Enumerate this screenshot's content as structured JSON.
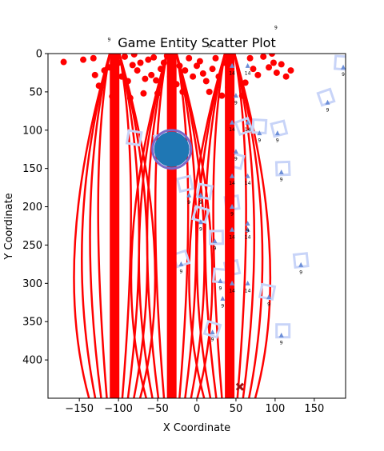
{
  "chart_data": {
    "type": "scatter",
    "title": "Game Entity Scatter Plot",
    "xlabel": "X Coordinate",
    "ylabel": "Y Coordinate",
    "xlim": [
      -190,
      190
    ],
    "ylim": [
      450,
      0
    ],
    "y_inverted": true,
    "grid": false,
    "legend": "none",
    "xticks": [
      -150,
      -100,
      -50,
      0,
      50,
      100,
      150
    ],
    "yticks": [
      0,
      50,
      100,
      150,
      200,
      250,
      300,
      350,
      400
    ],
    "colors": {
      "red": "#ff0000",
      "blue_marker": "#6d8fd8",
      "square_outline": "#c8d4f8",
      "player_fill": "#1f77b4",
      "player_ring": "#7b68c8",
      "cross": "#a01010"
    },
    "vertical_bars": [
      {
        "x": -105,
        "y_from": 0,
        "y_to": 450
      },
      {
        "x": -32,
        "y_from": 0,
        "y_to": 450
      },
      {
        "x": 42,
        "y_from": 0,
        "y_to": 450
      }
    ],
    "player": {
      "x": -32,
      "y": 125,
      "radius": 24
    },
    "cross_marker": {
      "x": 55,
      "y": 435
    },
    "red_points": [
      [
        -170,
        11
      ],
      [
        -145,
        8
      ],
      [
        -132,
        6
      ],
      [
        -130,
        28
      ],
      [
        -125,
        42
      ],
      [
        -118,
        22
      ],
      [
        -112,
        18
      ],
      [
        -106,
        4
      ],
      [
        -100,
        12
      ],
      [
        -96,
        30
      ],
      [
        -92,
        4
      ],
      [
        -88,
        36
      ],
      [
        -85,
        58
      ],
      [
        -82,
        15
      ],
      [
        -80,
        1
      ],
      [
        -76,
        22
      ],
      [
        -72,
        12
      ],
      [
        -68,
        52
      ],
      [
        -62,
        8
      ],
      [
        -58,
        28
      ],
      [
        -55,
        5
      ],
      [
        -52,
        35
      ],
      [
        -50,
        52
      ],
      [
        -46,
        20
      ],
      [
        -42,
        12
      ],
      [
        -38,
        3
      ],
      [
        -34,
        30
      ],
      [
        -30,
        6
      ],
      [
        -26,
        40
      ],
      [
        -22,
        16
      ],
      [
        -18,
        50
      ],
      [
        -15,
        22
      ],
      [
        -10,
        6
      ],
      [
        -5,
        30
      ],
      [
        0,
        16
      ],
      [
        4,
        10
      ],
      [
        8,
        26
      ],
      [
        12,
        36
      ],
      [
        16,
        50
      ],
      [
        20,
        20
      ],
      [
        24,
        6
      ],
      [
        28,
        30
      ],
      [
        32,
        55
      ],
      [
        36,
        12
      ],
      [
        40,
        44
      ],
      [
        58,
        55
      ],
      [
        62,
        38
      ],
      [
        68,
        6
      ],
      [
        72,
        20
      ],
      [
        78,
        28
      ],
      [
        85,
        4
      ],
      [
        92,
        18
      ],
      [
        96,
        0
      ],
      [
        98,
        12
      ],
      [
        102,
        25
      ],
      [
        108,
        14
      ],
      [
        114,
        30
      ],
      [
        120,
        22
      ],
      [
        -108,
        56
      ],
      [
        -66,
        33
      ]
    ],
    "blue_markers": [
      {
        "x": 45,
        "y": 16,
        "label": "14"
      },
      {
        "x": 65,
        "y": 16,
        "label": "14"
      },
      {
        "x": 50,
        "y": 55,
        "label": "9"
      },
      {
        "x": 45,
        "y": 90,
        "label": "14"
      },
      {
        "x": 65,
        "y": 90,
        "label": "14"
      },
      {
        "x": 80,
        "y": 104,
        "label": "9"
      },
      {
        "x": 103,
        "y": 104,
        "label": "9"
      },
      {
        "x": 50,
        "y": 128,
        "label": "9"
      },
      {
        "x": 45,
        "y": 160,
        "label": "14"
      },
      {
        "x": 65,
        "y": 160,
        "label": "14"
      },
      {
        "x": 108,
        "y": 155,
        "label": "9"
      },
      {
        "x": 167,
        "y": 64,
        "label": "9"
      },
      {
        "x": -10,
        "y": 185,
        "label": "9"
      },
      {
        "x": 5,
        "y": 185,
        "label": "9"
      },
      {
        "x": 45,
        "y": 200,
        "label": "9"
      },
      {
        "x": 45,
        "y": 230,
        "label": "14"
      },
      {
        "x": 65,
        "y": 230,
        "label": "14"
      },
      {
        "x": 5,
        "y": 220,
        "label": "9"
      },
      {
        "x": 65,
        "y": 222,
        "label": "9"
      },
      {
        "x": 23,
        "y": 245,
        "label": "9"
      },
      {
        "x": -20,
        "y": 275,
        "label": "9"
      },
      {
        "x": 30,
        "y": 297,
        "label": "9"
      },
      {
        "x": 45,
        "y": 300,
        "label": "14"
      },
      {
        "x": 65,
        "y": 300,
        "label": "14"
      },
      {
        "x": 33,
        "y": 320,
        "label": "9"
      },
      {
        "x": 92,
        "y": 318,
        "label": "9"
      },
      {
        "x": 133,
        "y": 276,
        "label": "9"
      },
      {
        "x": 20,
        "y": 364,
        "label": "9"
      },
      {
        "x": 108,
        "y": 368,
        "label": "9"
      },
      {
        "x": 187,
        "y": 18,
        "label": "9"
      }
    ],
    "outlined_squares": [
      {
        "x": 60,
        "y": 95
      },
      {
        "x": 80,
        "y": 95
      },
      {
        "x": 105,
        "y": 98
      },
      {
        "x": -80,
        "y": 110
      },
      {
        "x": -45,
        "y": 115
      },
      {
        "x": 50,
        "y": 140
      },
      {
        "x": 110,
        "y": 150
      },
      {
        "x": 165,
        "y": 57
      },
      {
        "x": 185,
        "y": 12
      },
      {
        "x": -15,
        "y": 170
      },
      {
        "x": 10,
        "y": 180
      },
      {
        "x": 45,
        "y": 195
      },
      {
        "x": 5,
        "y": 210
      },
      {
        "x": 25,
        "y": 240
      },
      {
        "x": -20,
        "y": 268
      },
      {
        "x": 30,
        "y": 290
      },
      {
        "x": 45,
        "y": 280
      },
      {
        "x": 90,
        "y": 311
      },
      {
        "x": 133,
        "y": 270
      },
      {
        "x": 20,
        "y": 360
      },
      {
        "x": 110,
        "y": 362
      }
    ],
    "stray_labels": [
      {
        "x": -112,
        "y": -16,
        "label": "9"
      },
      {
        "x": 16,
        "y": -8,
        "label": "9"
      },
      {
        "x": 101,
        "y": -32,
        "label": "9"
      }
    ]
  }
}
